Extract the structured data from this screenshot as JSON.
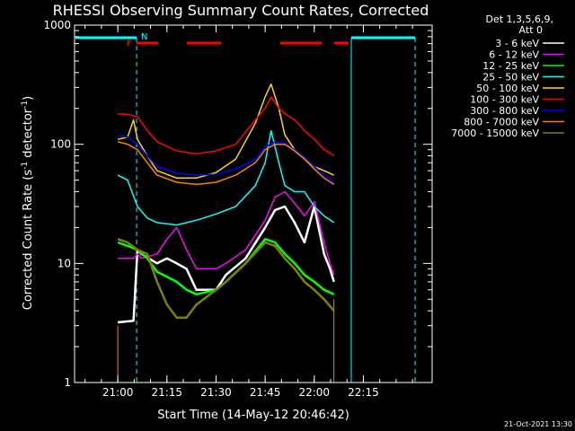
{
  "chart_data": {
    "type": "line",
    "title": "RHESSI Observing Summary Count Rates, Corrected",
    "xlabel": "Start Time (14-May-12 20:46:42)",
    "ylabel": "Corrected Count Rate (s⁻¹ detector⁻¹)",
    "ylabel_main": "Corrected Count Rate (s",
    "ylabel_sup1": "-1",
    "ylabel_mid": " detector",
    "ylabel_sup2": "-1",
    "ylabel_end": ")",
    "yscale": "log",
    "ylim": [
      1,
      1000
    ],
    "xlim_minutes": [
      20.78,
      22.6
    ],
    "x_ticks": [
      "21:00",
      "21:15",
      "21:30",
      "21:45",
      "22:00",
      "22:15"
    ],
    "y_ticks": [
      "1",
      "10",
      "100",
      "1000"
    ],
    "legend_header": [
      "Det 1,3,5,6,9,",
      "Att 0"
    ],
    "legend_placement": "right",
    "footer_date": "21-Oct-2021 13:30",
    "flags": {
      "F": "F",
      "N": "N"
    },
    "series": [
      {
        "name": "3 - 6 keV",
        "color": "#ffffff",
        "x": [
          21.0,
          21.08,
          21.1,
          21.12,
          21.2,
          21.25,
          21.3,
          21.35,
          21.4,
          21.5,
          21.55,
          21.65,
          21.75,
          21.8,
          21.85,
          21.9,
          21.95,
          22.0,
          22.05,
          22.08,
          22.1
        ],
        "y": [
          3.2,
          3.3,
          13,
          12,
          10,
          11,
          10,
          9,
          6,
          6,
          8,
          11,
          20,
          28,
          30,
          22,
          15,
          30,
          12,
          9,
          7
        ]
      },
      {
        "name": "6 - 12 keV",
        "color": "#ff00ff",
        "x": [
          21.0,
          21.08,
          21.1,
          21.12,
          21.2,
          21.25,
          21.3,
          21.35,
          21.4,
          21.5,
          21.55,
          21.65,
          21.75,
          21.8,
          21.85,
          21.9,
          21.95,
          22.0,
          22.05,
          22.08,
          22.1
        ],
        "y": [
          11,
          11,
          12,
          11,
          12,
          16,
          20,
          13,
          9,
          9,
          10,
          13,
          23,
          36,
          40,
          32,
          25,
          33,
          15,
          10,
          8
        ]
      },
      {
        "name": "12 - 25 keV",
        "color": "#00ff00",
        "x": [
          21.0,
          21.05,
          21.1,
          21.15,
          21.2,
          21.3,
          21.35,
          21.4,
          21.5,
          21.55,
          21.65,
          21.75,
          21.8,
          21.85,
          21.9,
          21.95,
          22.0,
          22.05,
          22.1
        ],
        "y": [
          15,
          14,
          13,
          11,
          8.5,
          7,
          6,
          5.5,
          6,
          7,
          10,
          16,
          15,
          12,
          10,
          8,
          7,
          6,
          5.5
        ]
      },
      {
        "name": "25 - 50 keV",
        "color": "#00ffff",
        "x": [
          21.0,
          21.05,
          21.1,
          21.15,
          21.2,
          21.3,
          21.4,
          21.5,
          21.6,
          21.7,
          21.75,
          21.78,
          21.82,
          21.85,
          21.9,
          21.95,
          22.0,
          22.05,
          22.1
        ],
        "y": [
          55,
          50,
          30,
          24,
          22,
          21,
          23,
          26,
          30,
          45,
          70,
          130,
          70,
          45,
          40,
          40,
          30,
          25,
          22
        ]
      },
      {
        "name": "50 - 100 keV",
        "color": "#ffd700",
        "x": [
          21.0,
          21.05,
          21.08,
          21.1,
          21.15,
          21.2,
          21.3,
          21.4,
          21.5,
          21.6,
          21.7,
          21.75,
          21.78,
          21.82,
          21.85,
          21.9,
          21.95,
          22.0,
          22.05,
          22.1
        ],
        "y": [
          110,
          115,
          160,
          110,
          80,
          60,
          52,
          52,
          58,
          75,
          150,
          250,
          320,
          200,
          120,
          90,
          75,
          65,
          60,
          55
        ]
      },
      {
        "name": "100 - 300 keV",
        "color": "#ff0000",
        "x": [
          21.0,
          21.05,
          21.1,
          21.15,
          21.2,
          21.3,
          21.4,
          21.5,
          21.6,
          21.7,
          21.75,
          21.78,
          21.82,
          21.85,
          21.9,
          21.95,
          22.0,
          22.05,
          22.1
        ],
        "y": [
          180,
          178,
          170,
          130,
          105,
          88,
          83,
          88,
          100,
          160,
          200,
          250,
          200,
          180,
          160,
          130,
          110,
          90,
          80
        ]
      },
      {
        "name": "300 - 800 keV",
        "color": "#0000ff",
        "x": [
          21.0,
          21.05,
          21.1,
          21.15,
          21.2,
          21.3,
          21.4,
          21.5,
          21.6,
          21.7,
          21.75,
          21.8,
          21.85,
          21.9,
          21.95,
          22.0,
          22.05,
          22.1
        ],
        "y": [
          118,
          115,
          100,
          80,
          65,
          57,
          55,
          56,
          62,
          75,
          95,
          105,
          102,
          90,
          78,
          65,
          55,
          48
        ]
      },
      {
        "name": "800 - 7000 keV",
        "color": "#ff7f00",
        "x": [
          21.0,
          21.05,
          21.1,
          21.15,
          21.2,
          21.3,
          21.4,
          21.5,
          21.6,
          21.7,
          21.75,
          21.8,
          21.85,
          21.9,
          21.95,
          22.0,
          22.05,
          22.1
        ],
        "y": [
          105,
          100,
          90,
          70,
          55,
          48,
          46,
          48,
          55,
          70,
          90,
          100,
          100,
          88,
          75,
          62,
          52,
          46
        ]
      },
      {
        "name": "7000 - 15000 keV",
        "color": "#808000",
        "x": [
          21.0,
          21.05,
          21.1,
          21.15,
          21.2,
          21.25,
          21.3,
          21.35,
          21.4,
          21.5,
          21.55,
          21.65,
          21.75,
          21.8,
          21.85,
          21.9,
          21.95,
          22.0,
          22.05,
          22.1
        ],
        "y": [
          16,
          15,
          13,
          12,
          7,
          4.5,
          3.5,
          3.5,
          4.5,
          6,
          7,
          10,
          15,
          14,
          11,
          9,
          7,
          6,
          5,
          4
        ]
      }
    ]
  }
}
